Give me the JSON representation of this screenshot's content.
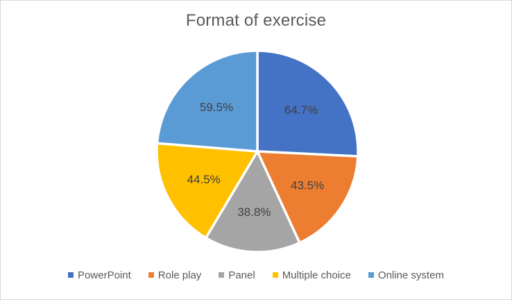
{
  "chart_data": {
    "type": "pie",
    "title": "Format of exercise",
    "slices": [
      {
        "label": "PowerPoint",
        "value": 64.7,
        "display": "64.7%",
        "color": "#4472C4"
      },
      {
        "label": "Role play",
        "value": 43.5,
        "display": "43.5%",
        "color": "#ED7D31"
      },
      {
        "label": "Panel",
        "value": 38.8,
        "display": "38.8%",
        "color": "#A5A5A5"
      },
      {
        "label": "Multiple choice",
        "value": 44.5,
        "display": "44.5%",
        "color": "#FFC000"
      },
      {
        "label": "Online system",
        "value": 59.5,
        "display": "59.5%",
        "color": "#5B9BD5"
      }
    ],
    "start_angle_deg": 0,
    "direction": "clockwise",
    "data_labels": true,
    "label_color": "#404040",
    "title_color": "#595959",
    "legend_position": "bottom",
    "background": "#FFFFFF",
    "border_color": "#D9D9D9",
    "slice_separator_color": "#FFFFFF"
  }
}
